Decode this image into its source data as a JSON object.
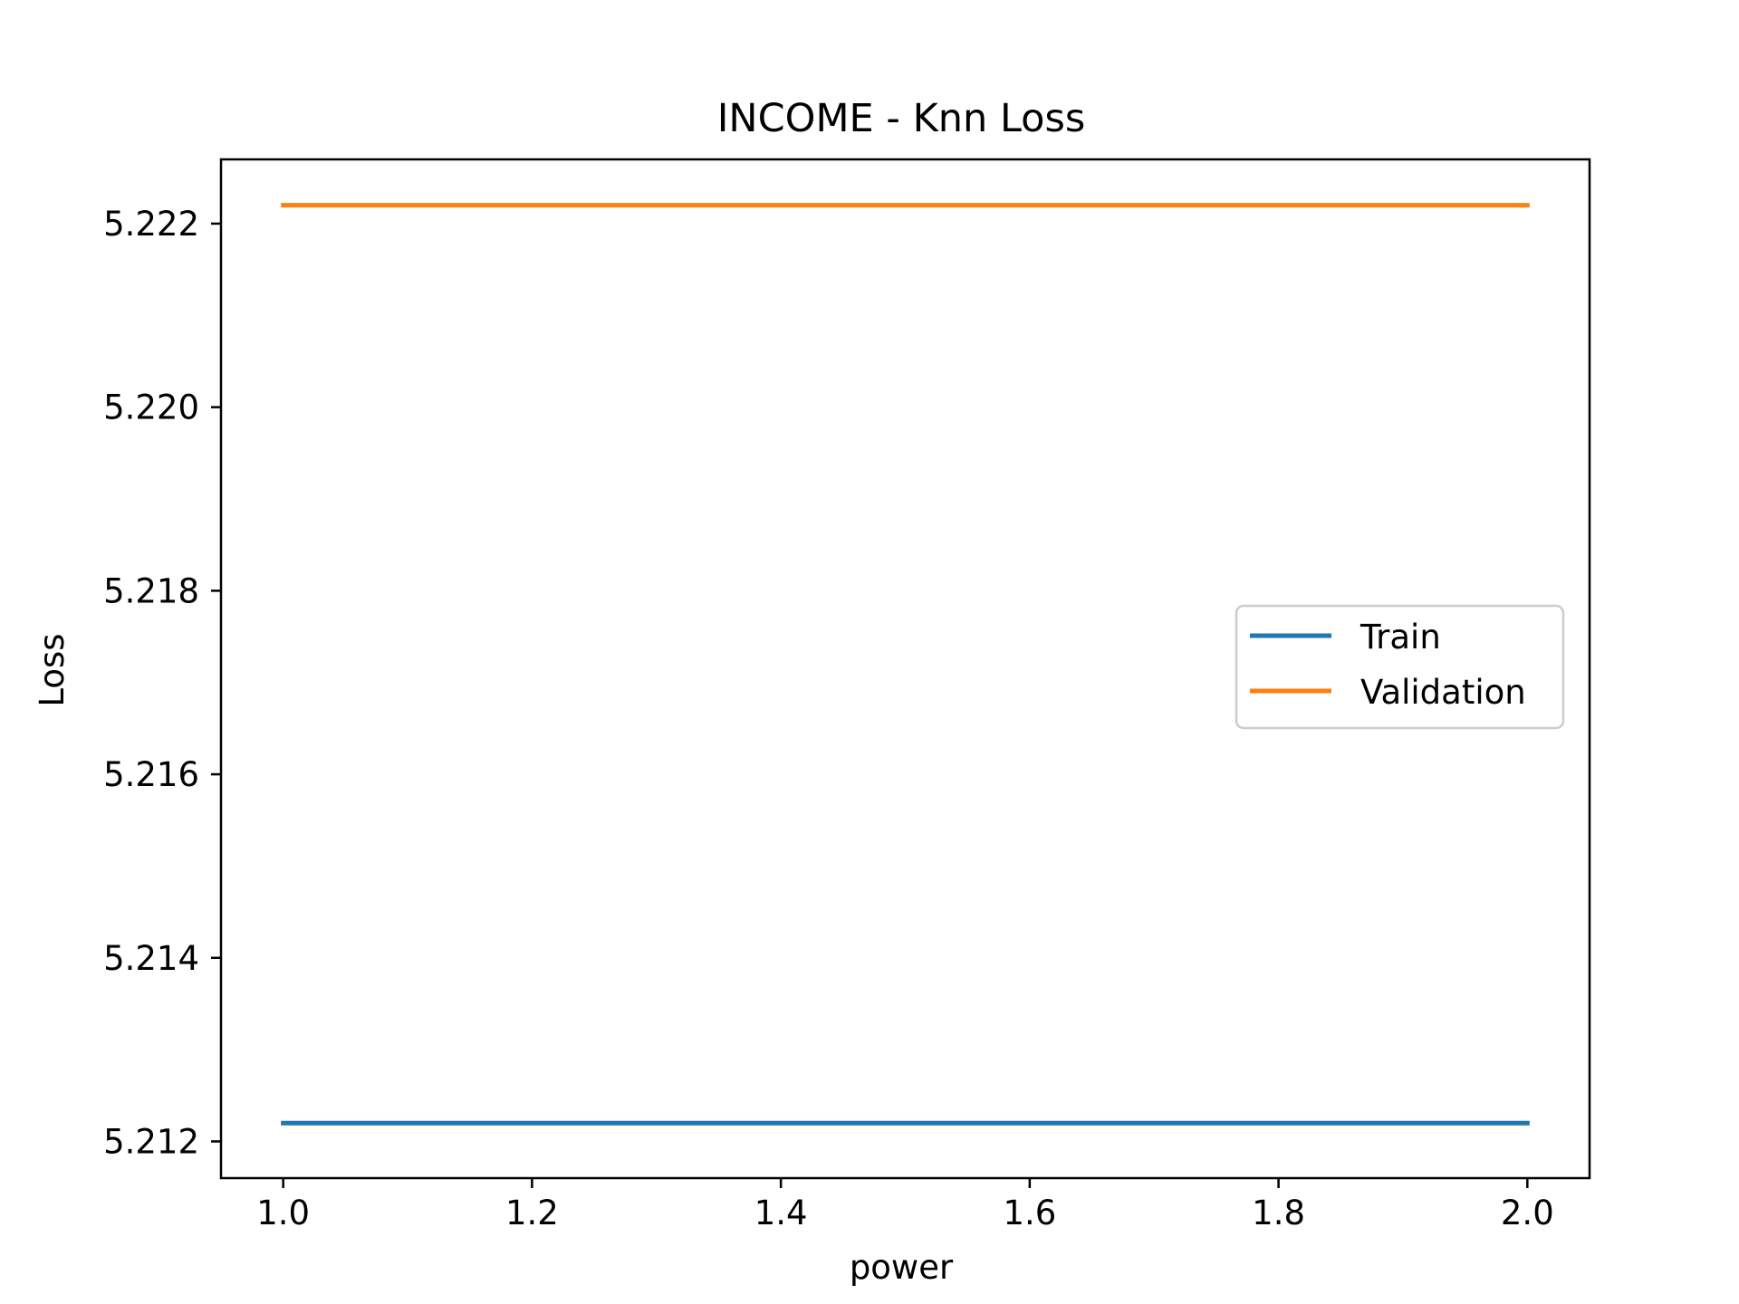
{
  "chart_data": {
    "type": "line",
    "title": "INCOME - Knn Loss",
    "xlabel": "power",
    "ylabel": "Loss",
    "x": [
      1.0,
      2.0
    ],
    "xlim": [
      0.95,
      2.05
    ],
    "ylim": [
      5.2116,
      5.2227
    ],
    "xticks": [
      1.0,
      1.2,
      1.4,
      1.6,
      1.8,
      2.0
    ],
    "xtick_labels": [
      "1.0",
      "1.2",
      "1.4",
      "1.6",
      "1.8",
      "2.0"
    ],
    "yticks": [
      5.212,
      5.214,
      5.216,
      5.218,
      5.22,
      5.222
    ],
    "ytick_labels": [
      "5.212",
      "5.214",
      "5.216",
      "5.218",
      "5.220",
      "5.222"
    ],
    "grid": false,
    "legend_position": "center-right",
    "series": [
      {
        "name": "Train",
        "y": [
          5.2122,
          5.2122
        ],
        "color": "#1f77b4"
      },
      {
        "name": "Validation",
        "y": [
          5.2222,
          5.2222
        ],
        "color": "#ff7f0e"
      }
    ]
  }
}
